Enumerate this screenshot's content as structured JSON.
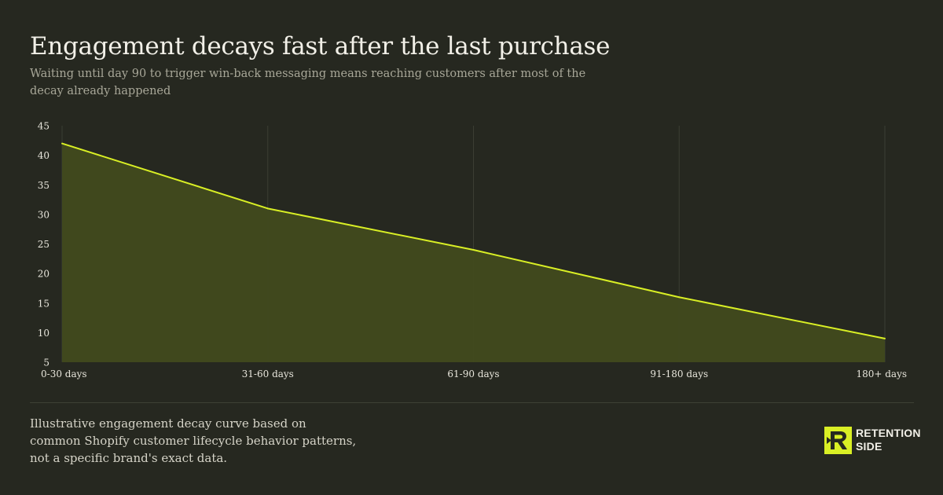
{
  "header": {
    "title": "Engagement decays fast after the last purchase",
    "subtitle": "Waiting until day 90 to trigger win-back messaging means reaching customers after most of the decay already happened"
  },
  "chart_data": {
    "type": "area",
    "categories": [
      "0-30 days",
      "31-60 days",
      "61-90 days",
      "91-180 days",
      "180+ days"
    ],
    "series": [
      {
        "name": "",
        "values": [
          42,
          31,
          24,
          16,
          9
        ]
      }
    ],
    "ylim": [
      5,
      45
    ],
    "yticks": [
      5,
      10,
      15,
      20,
      25,
      30,
      35,
      40,
      45
    ],
    "grid": "vertical",
    "legend": "none",
    "colors": {
      "line": "#d9ef25",
      "fill": "#414a1e",
      "grid": "#3b3e33",
      "tick_text": "#e8e6dc"
    }
  },
  "footer": {
    "note": "Illustrative engagement decay curve based on common Shopify customer lifecycle behavior patterns, not a specific brand's exact data.",
    "brand_line1": "RETENTION",
    "brand_line2": "SIDE",
    "brand_color": "#d9ef25"
  }
}
